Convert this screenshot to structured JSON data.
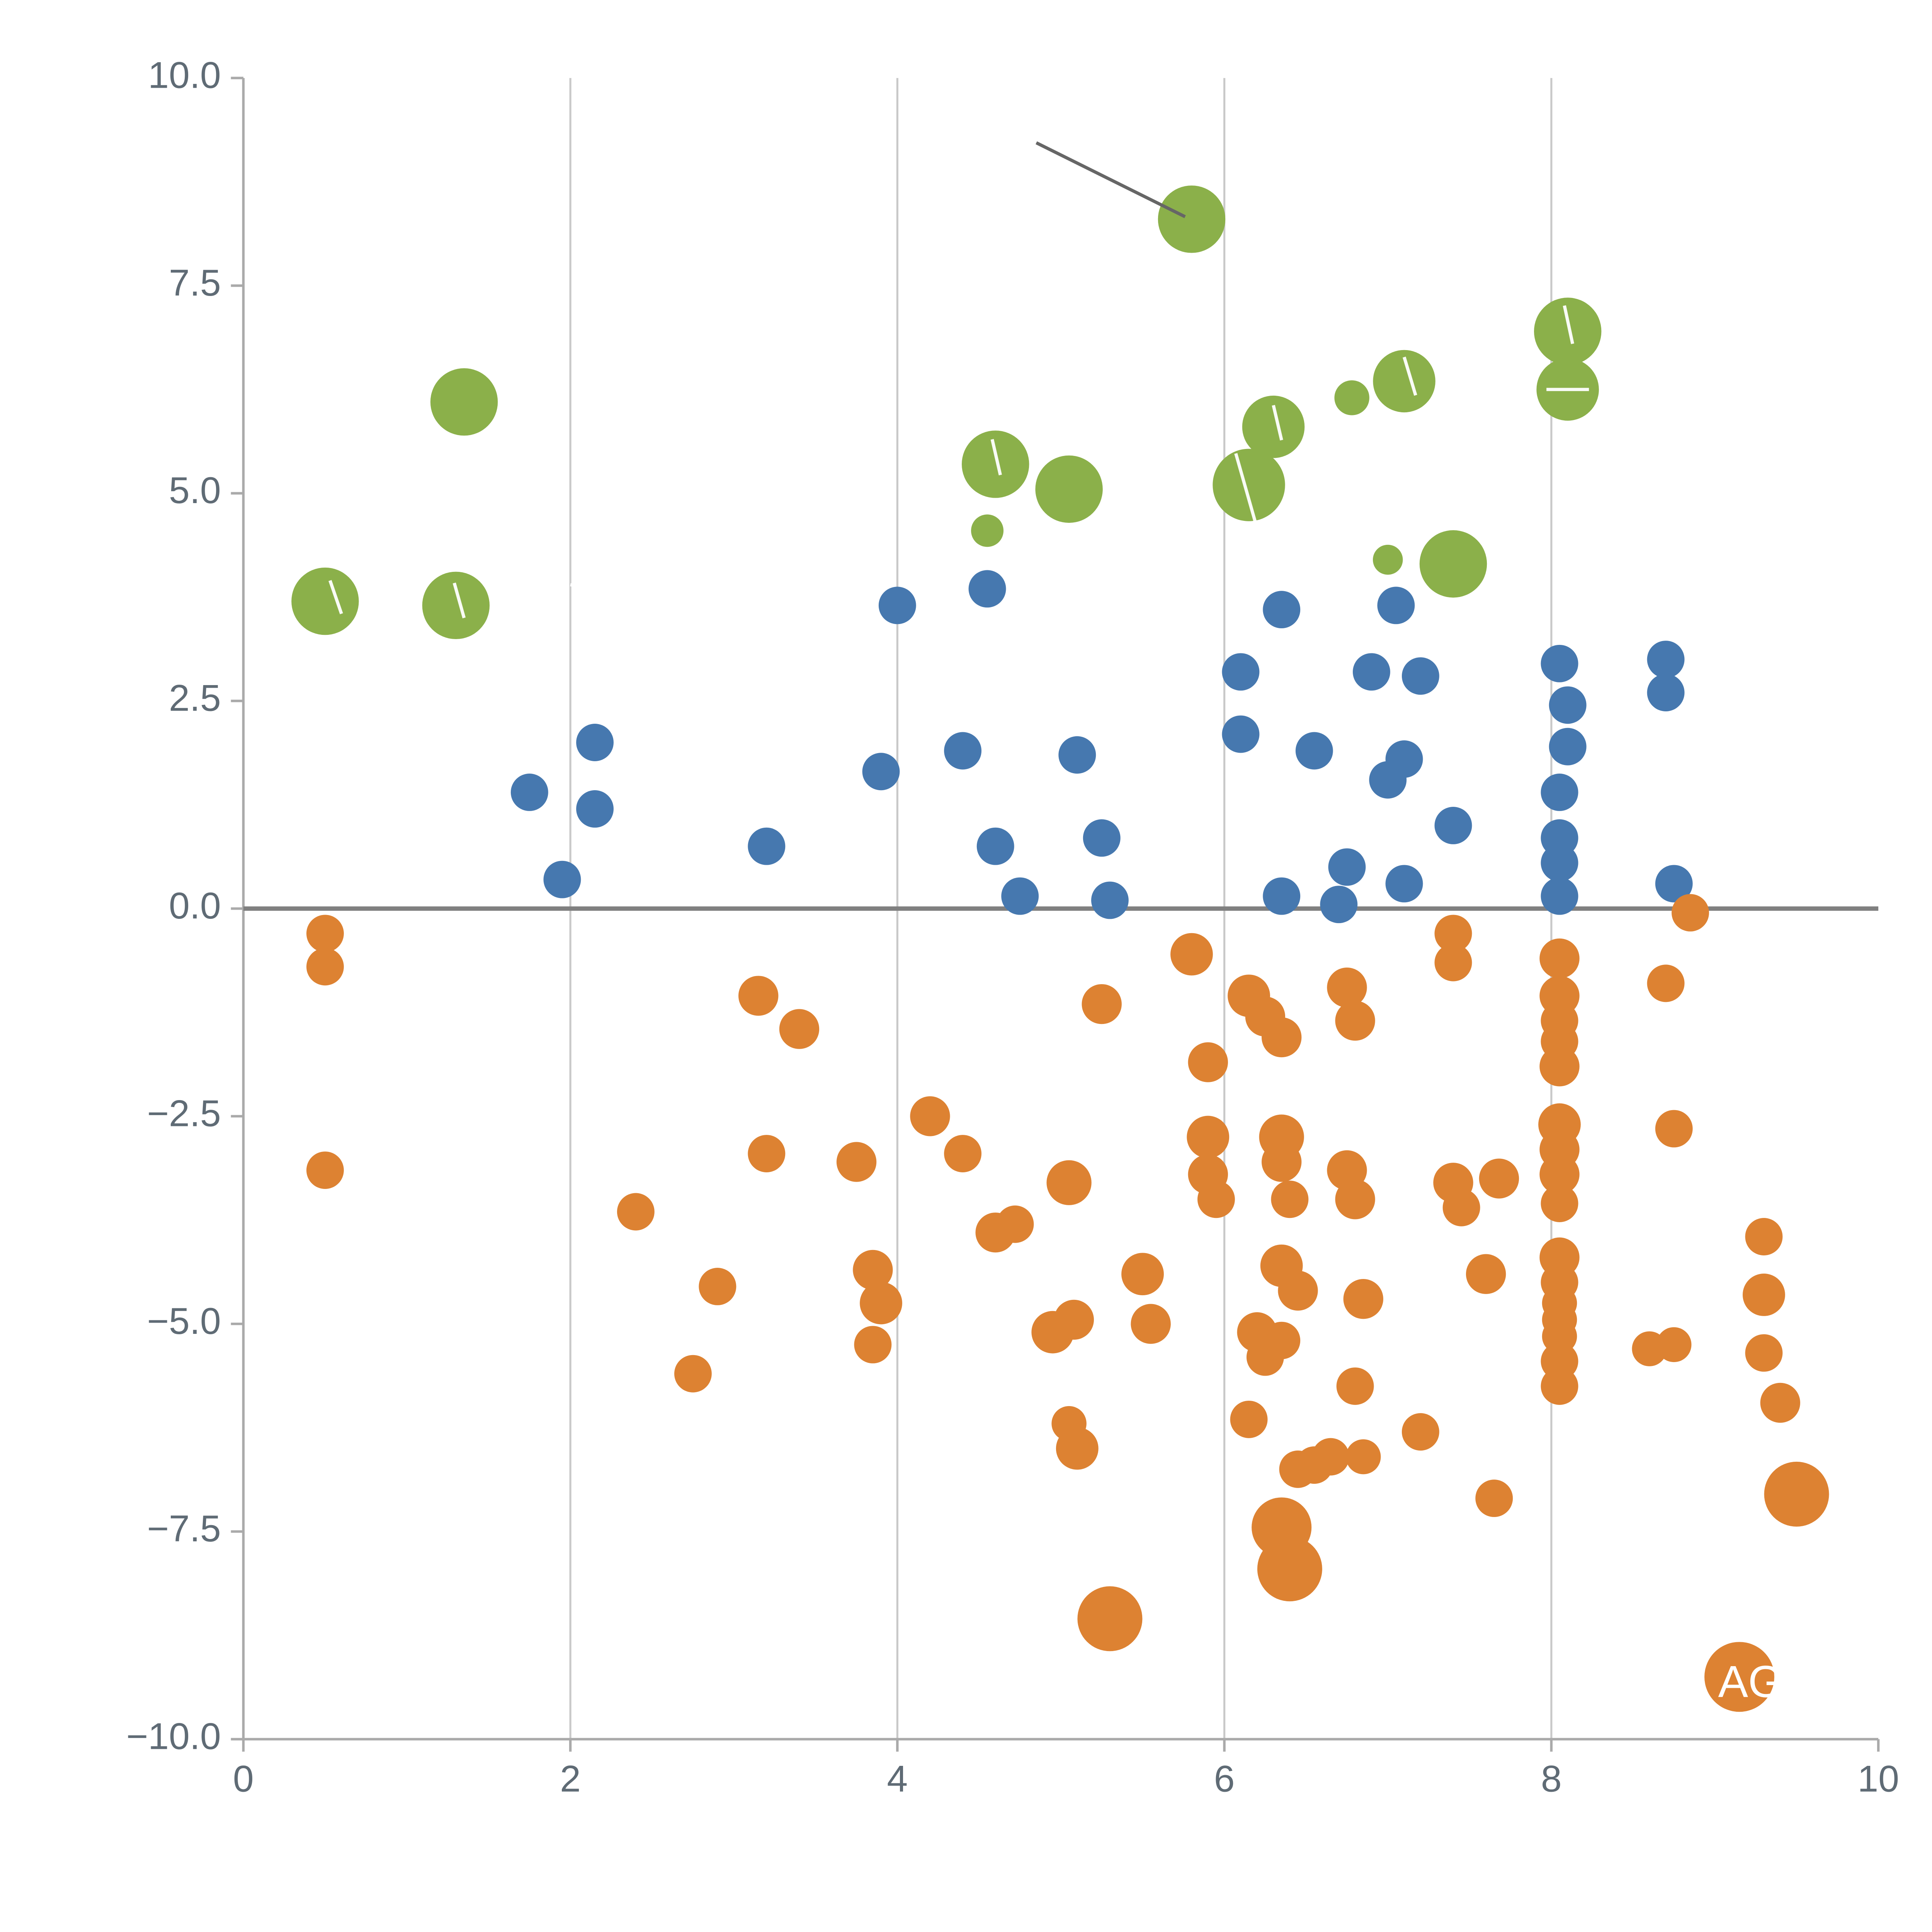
{
  "chart_data": {
    "type": "scatter",
    "title": "",
    "xlabel": "",
    "ylabel": "",
    "xlim": [
      0,
      10
    ],
    "ylim": [
      -10,
      10
    ],
    "x_ticks": [
      0,
      2,
      4,
      6,
      8,
      10
    ],
    "x_tick_labels": [
      "0",
      "2",
      "4",
      "6",
      "8",
      "10"
    ],
    "y_ticks": [
      10,
      7.5,
      5,
      2.5,
      0,
      -2.5,
      -5,
      -7.5,
      -10
    ],
    "y_tick_labels": [
      "10.0",
      "7.5",
      "5.0",
      "2.5",
      "0.0",
      "−2.5",
      "−5.0",
      "−7.5",
      "−10.0"
    ],
    "grid": "vertical gridlines only",
    "gridline_xs": [
      2,
      4,
      6,
      8
    ],
    "zero_line_y": 0,
    "legend": "none",
    "colors": {
      "green": "#8bb04a",
      "blue": "#4678af",
      "orange": "#dd8232",
      "grid": "#c9c9c9",
      "zero_line": "#808080",
      "axis": "#aaaaaa",
      "tick_text": "#5f6b75",
      "annotation_line": "#666666",
      "white_mark": "#ffffff"
    },
    "series": [
      {
        "name": "green",
        "color": "#8bb04a",
        "points": [
          [
            0.5,
            3.7,
            27
          ],
          [
            1.35,
            6.1,
            27
          ],
          [
            1.3,
            3.65,
            27
          ],
          [
            4.6,
            5.35,
            27
          ],
          [
            4.55,
            4.55,
            13
          ],
          [
            5.05,
            5.05,
            27
          ],
          [
            5.8,
            8.3,
            27
          ],
          [
            6.15,
            5.1,
            29
          ],
          [
            6.3,
            5.8,
            25
          ],
          [
            6.78,
            6.15,
            14
          ],
          [
            7.1,
            6.35,
            25
          ],
          [
            7.0,
            4.2,
            12
          ],
          [
            7.4,
            4.15,
            27
          ],
          [
            8.1,
            6.95,
            27
          ],
          [
            8.1,
            6.25,
            25
          ]
        ]
      },
      {
        "name": "blue",
        "color": "#4678af",
        "points": [
          [
            1.75,
            1.4,
            15
          ],
          [
            2.15,
            2.0,
            15
          ],
          [
            2.15,
            1.2,
            15
          ],
          [
            1.95,
            0.35,
            15
          ],
          [
            3.2,
            0.75,
            15
          ],
          [
            4.0,
            3.65,
            15
          ],
          [
            3.9,
            1.65,
            15
          ],
          [
            4.55,
            3.85,
            15
          ],
          [
            4.4,
            1.9,
            15
          ],
          [
            4.6,
            0.75,
            15
          ],
          [
            4.75,
            0.15,
            15
          ],
          [
            5.1,
            1.85,
            15
          ],
          [
            5.25,
            0.85,
            15
          ],
          [
            5.3,
            0.1,
            15
          ],
          [
            6.1,
            2.85,
            15
          ],
          [
            6.1,
            2.1,
            15
          ],
          [
            6.35,
            3.6,
            15
          ],
          [
            6.55,
            1.9,
            15
          ],
          [
            6.35,
            0.15,
            15
          ],
          [
            6.75,
            0.5,
            15
          ],
          [
            6.7,
            0.05,
            15
          ],
          [
            6.9,
            2.85,
            15
          ],
          [
            7.05,
            3.65,
            15
          ],
          [
            7.1,
            1.8,
            15
          ],
          [
            7.0,
            1.55,
            15
          ],
          [
            7.2,
            2.8,
            15
          ],
          [
            7.1,
            0.3,
            15
          ],
          [
            7.4,
            1.0,
            15
          ],
          [
            8.05,
            2.95,
            15
          ],
          [
            8.1,
            2.45,
            15
          ],
          [
            8.1,
            1.95,
            15
          ],
          [
            8.05,
            1.4,
            15
          ],
          [
            8.05,
            0.85,
            15
          ],
          [
            8.05,
            0.55,
            15
          ],
          [
            8.05,
            0.15,
            15
          ],
          [
            8.7,
            3.0,
            15
          ],
          [
            8.7,
            2.6,
            15
          ],
          [
            8.75,
            0.3,
            15
          ]
        ]
      },
      {
        "name": "orange",
        "color": "#dd8232",
        "points": [
          [
            0.5,
            -0.3,
            15
          ],
          [
            0.5,
            -0.7,
            15
          ],
          [
            0.5,
            -3.15,
            15
          ],
          [
            2.4,
            -3.65,
            15
          ],
          [
            2.75,
            -5.6,
            15
          ],
          [
            2.9,
            -4.55,
            15
          ],
          [
            3.15,
            -1.05,
            16
          ],
          [
            3.2,
            -2.95,
            15
          ],
          [
            3.4,
            -1.45,
            16
          ],
          [
            3.75,
            -3.05,
            16
          ],
          [
            3.85,
            -4.35,
            16
          ],
          [
            3.9,
            -4.75,
            17
          ],
          [
            3.85,
            -5.25,
            15
          ],
          [
            4.2,
            -2.5,
            16
          ],
          [
            4.4,
            -2.95,
            15
          ],
          [
            4.6,
            -3.9,
            16
          ],
          [
            4.72,
            -3.8,
            15
          ],
          [
            4.95,
            -5.1,
            17
          ],
          [
            5.08,
            -4.95,
            16
          ],
          [
            5.05,
            -3.3,
            18
          ],
          [
            5.1,
            -6.5,
            17
          ],
          [
            5.05,
            -6.2,
            14
          ],
          [
            5.25,
            -1.15,
            16
          ],
          [
            5.3,
            -8.55,
            26
          ],
          [
            5.5,
            -4.4,
            17
          ],
          [
            5.55,
            -5.0,
            16
          ],
          [
            5.8,
            -0.55,
            17
          ],
          [
            5.9,
            -1.85,
            16
          ],
          [
            5.9,
            -2.75,
            17
          ],
          [
            5.9,
            -3.2,
            16
          ],
          [
            5.95,
            -3.5,
            15
          ],
          [
            6.15,
            -1.05,
            17
          ],
          [
            6.25,
            -1.3,
            16
          ],
          [
            6.35,
            -1.55,
            16
          ],
          [
            6.15,
            -6.15,
            15
          ],
          [
            6.2,
            -5.1,
            16
          ],
          [
            6.25,
            -5.4,
            15
          ],
          [
            6.35,
            -5.2,
            15
          ],
          [
            6.35,
            -2.75,
            18
          ],
          [
            6.35,
            -3.05,
            16
          ],
          [
            6.4,
            -3.5,
            15
          ],
          [
            6.35,
            -4.3,
            17
          ],
          [
            6.45,
            -4.6,
            16
          ],
          [
            6.35,
            -7.45,
            24
          ],
          [
            6.4,
            -7.95,
            26
          ],
          [
            6.45,
            -6.75,
            15
          ],
          [
            6.55,
            -6.7,
            15
          ],
          [
            6.65,
            -6.6,
            15
          ],
          [
            6.75,
            -0.95,
            16
          ],
          [
            6.8,
            -1.35,
            16
          ],
          [
            6.75,
            -3.15,
            16
          ],
          [
            6.8,
            -3.5,
            16
          ],
          [
            6.85,
            -4.7,
            16
          ],
          [
            6.8,
            -5.75,
            15
          ],
          [
            6.85,
            -6.6,
            14
          ],
          [
            7.2,
            -6.3,
            15
          ],
          [
            7.4,
            -0.3,
            15
          ],
          [
            7.4,
            -0.65,
            15
          ],
          [
            7.4,
            -3.3,
            16
          ],
          [
            7.45,
            -3.6,
            15
          ],
          [
            7.6,
            -4.4,
            16
          ],
          [
            7.68,
            -3.25,
            16
          ],
          [
            7.65,
            -7.1,
            15
          ],
          [
            8.05,
            -0.6,
            16
          ],
          [
            8.05,
            -1.05,
            16
          ],
          [
            8.05,
            -1.35,
            15
          ],
          [
            8.05,
            -1.6,
            15
          ],
          [
            8.05,
            -1.9,
            16
          ],
          [
            8.05,
            -2.6,
            17
          ],
          [
            8.05,
            -2.9,
            16
          ],
          [
            8.05,
            -3.2,
            16
          ],
          [
            8.05,
            -3.55,
            15
          ],
          [
            8.05,
            -4.2,
            16
          ],
          [
            8.05,
            -4.5,
            15
          ],
          [
            8.05,
            -4.75,
            14
          ],
          [
            8.05,
            -4.95,
            14
          ],
          [
            8.05,
            -5.15,
            14
          ],
          [
            8.05,
            -5.45,
            15
          ],
          [
            8.05,
            -5.75,
            15
          ],
          [
            8.7,
            -0.9,
            15
          ],
          [
            8.85,
            -0.05,
            15
          ],
          [
            8.75,
            -2.65,
            15
          ],
          [
            8.6,
            -5.3,
            14
          ],
          [
            8.75,
            -5.25,
            14
          ],
          [
            9.3,
            -3.95,
            15
          ],
          [
            9.3,
            -4.65,
            17
          ],
          [
            9.3,
            -5.35,
            15
          ],
          [
            9.4,
            -5.95,
            16
          ],
          [
            9.5,
            -7.05,
            26
          ],
          [
            9.15,
            -9.25,
            28
          ]
        ]
      }
    ],
    "annotations": {
      "leader_line": {
        "x1": 4.85,
        "y1": 9.22,
        "x2": 5.76,
        "y2": 8.33,
        "color": "#666666"
      },
      "white_marks": [
        [
          0.53,
          3.95,
          0.6,
          3.55
        ],
        [
          1.29,
          3.92,
          1.35,
          3.5
        ],
        [
          2.0,
          3.9,
          2.12,
          3.85
        ],
        [
          4.58,
          5.65,
          4.63,
          5.22
        ],
        [
          6.07,
          5.48,
          6.2,
          4.58
        ],
        [
          6.3,
          6.06,
          6.35,
          5.64
        ],
        [
          7.1,
          6.64,
          7.17,
          6.18
        ],
        [
          8.08,
          7.26,
          8.13,
          6.8
        ],
        [
          7.97,
          6.25,
          8.23,
          6.25
        ]
      ],
      "bubble_label": {
        "text": "AG",
        "x": 9.02,
        "y": -9.35,
        "color": "#ffffff"
      }
    }
  }
}
